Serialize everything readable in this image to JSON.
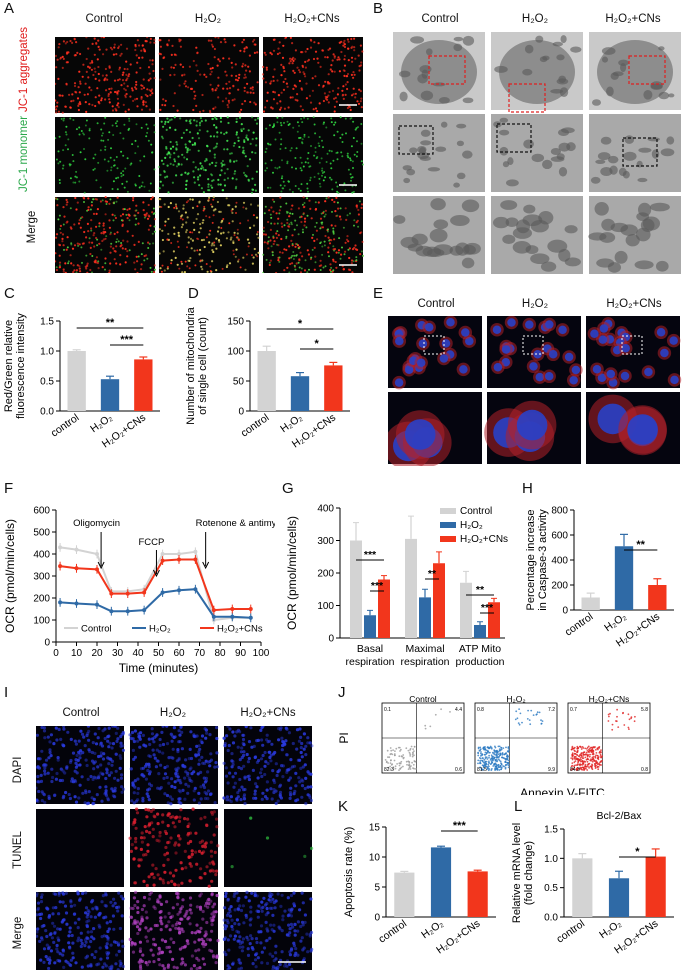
{
  "panels": [
    "A",
    "B",
    "C",
    "D",
    "E",
    "F",
    "G",
    "H",
    "I",
    "J",
    "K",
    "L"
  ],
  "groups": [
    "Control",
    "H₂O₂",
    "H₂O₂+CNs"
  ],
  "groups_lower": [
    "control",
    "H₂O₂",
    "H₂O₂+CNs"
  ],
  "panelA": {
    "rows": [
      "JC-1 aggregates",
      "JC-1 monomer",
      "Merge"
    ]
  },
  "panelI": {
    "rows": [
      "DAPI",
      "TUNEL",
      "Merge"
    ]
  },
  "panelJ": {
    "xlabel": "Annexin V-FITC",
    "ylabel": "PI",
    "quad_vals": [
      [
        "0.1",
        "4.4",
        "82.3",
        "0.6"
      ],
      [
        "0.8",
        "7.2",
        "81.5",
        "9.9"
      ],
      [
        "0.7",
        "5.8",
        "84.3",
        "0.8"
      ]
    ]
  },
  "colors": {
    "gray": "#d3d3d3",
    "blue": "#2f6aa6",
    "red": "#f2361c"
  },
  "chart_data": [
    {
      "panel": "C",
      "type": "bar",
      "categories": [
        "control",
        "H₂O₂",
        "H₂O₂+CNs"
      ],
      "values": [
        1.0,
        0.53,
        0.86
      ],
      "errors": [
        0.02,
        0.05,
        0.04
      ],
      "ylabel": "Red/Green relative fluorescence intensity",
      "ylim": [
        0,
        1.5
      ],
      "yticks": [
        "0.0",
        "0.5",
        "1.0",
        "1.5"
      ],
      "sig": [
        {
          "from": 0,
          "to": 2,
          "label": "**"
        },
        {
          "from": 1,
          "to": 2,
          "label": "***"
        }
      ]
    },
    {
      "panel": "D",
      "type": "bar",
      "categories": [
        "control",
        "H₂O₂",
        "H₂O₂+CNs"
      ],
      "values": [
        100,
        58,
        76
      ],
      "errors": [
        8,
        6,
        5
      ],
      "ylabel": "Number of mitochondria of single cell (count)",
      "ylim": [
        0,
        150
      ],
      "yticks": [
        "0",
        "50",
        "100",
        "150"
      ],
      "sig": [
        {
          "from": 0,
          "to": 2,
          "label": "*"
        },
        {
          "from": 1,
          "to": 2,
          "label": "*"
        }
      ]
    },
    {
      "panel": "F",
      "type": "line",
      "xlabel": "Time (minutes)",
      "ylabel": "OCR (pmol/min/cells)",
      "xlim": [
        0,
        100
      ],
      "ylim": [
        0,
        600
      ],
      "xticks": [
        "0",
        "10",
        "20",
        "30",
        "40",
        "50",
        "60",
        "70",
        "80",
        "90",
        "100"
      ],
      "yticks": [
        "0",
        "100",
        "200",
        "300",
        "400",
        "500",
        "600"
      ],
      "x": [
        2,
        10,
        20,
        27,
        35,
        43,
        52,
        60,
        68,
        77,
        86,
        95
      ],
      "annotations": [
        "Oligomycin",
        "FCCP",
        "Rotenone & antimycin A"
      ],
      "series": [
        {
          "name": "Control",
          "values": [
            430,
            420,
            400,
            230,
            230,
            240,
            400,
            400,
            410,
            100,
            110,
            110
          ]
        },
        {
          "name": "H₂O₂",
          "values": [
            180,
            175,
            170,
            140,
            140,
            145,
            225,
            235,
            240,
            115,
            115,
            110
          ]
        },
        {
          "name": "H₂O₂+CNs",
          "values": [
            345,
            335,
            330,
            220,
            220,
            225,
            370,
            375,
            375,
            145,
            150,
            150
          ]
        }
      ]
    },
    {
      "panel": "G",
      "type": "bar",
      "categories": [
        "Basal respiration",
        "Maximal respiration",
        "ATP Mito production"
      ],
      "ylabel": "OCR (pmol/min/cells)",
      "ylim": [
        0,
        400
      ],
      "yticks": [
        "0",
        "100",
        "200",
        "300",
        "400"
      ],
      "series": [
        {
          "name": "Control",
          "values": [
            300,
            305,
            170
          ],
          "errors": [
            55,
            70,
            35
          ]
        },
        {
          "name": "H₂O₂",
          "values": [
            70,
            125,
            40
          ],
          "errors": [
            15,
            25,
            10
          ]
        },
        {
          "name": "H₂O₂+CNs",
          "values": [
            180,
            230,
            110
          ],
          "errors": [
            12,
            35,
            12
          ]
        }
      ],
      "sig": [
        {
          "label": "***"
        },
        {
          "label": "***"
        },
        {
          "label": "**"
        },
        {
          "label": "**"
        },
        {
          "label": "***"
        }
      ]
    },
    {
      "panel": "H",
      "type": "bar",
      "categories": [
        "control",
        "H₂O₂",
        "H₂O₂+CNs"
      ],
      "values": [
        100,
        510,
        200
      ],
      "errors": [
        35,
        95,
        50
      ],
      "ylabel": "Percentage increase in Caspase-3 activity",
      "ylim": [
        0,
        800
      ],
      "yticks": [
        "0",
        "200",
        "400",
        "600",
        "800"
      ],
      "sig": [
        {
          "from": 1,
          "to": 2,
          "label": "**"
        }
      ]
    },
    {
      "panel": "K",
      "type": "bar",
      "categories": [
        "control",
        "H₂O₂",
        "H₂O₂+CNs"
      ],
      "values": [
        7.4,
        11.6,
        7.6
      ],
      "errors": [
        0.2,
        0.2,
        0.2
      ],
      "ylabel": "Apoptosis rate (%)",
      "ylim": [
        0,
        15
      ],
      "yticks": [
        "0",
        "5",
        "10",
        "15"
      ],
      "sig": [
        {
          "from": 1,
          "to": 2,
          "label": "***"
        }
      ]
    },
    {
      "panel": "L",
      "type": "bar",
      "title": "Bcl-2/Bax",
      "categories": [
        "control",
        "H₂O₂",
        "H₂O₂+CNs"
      ],
      "values": [
        1.0,
        0.66,
        1.03
      ],
      "errors": [
        0.08,
        0.12,
        0.13
      ],
      "ylabel": "Relative mRNA level (fold change)",
      "ylim": [
        0,
        1.5
      ],
      "yticks": [
        "0.0",
        "0.5",
        "1.0",
        "1.5"
      ],
      "sig": [
        {
          "from": 1,
          "to": 2,
          "label": "*"
        }
      ]
    }
  ]
}
